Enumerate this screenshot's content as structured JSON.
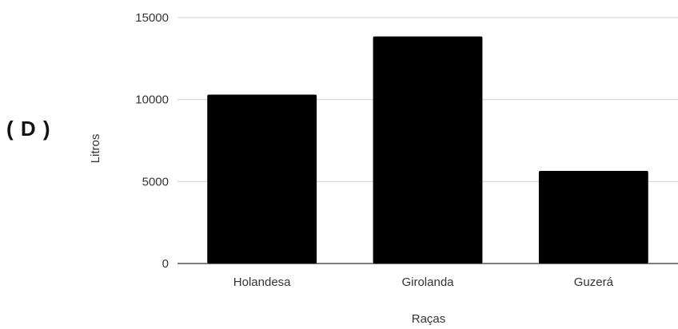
{
  "option_label": "( D )",
  "chart_data": {
    "type": "bar",
    "categories": [
      "Holandesa",
      "Girolanda",
      "Guzerá"
    ],
    "values": [
      10300,
      13850,
      5650
    ],
    "title": "",
    "xlabel": "Raças",
    "ylabel": "Litros",
    "ylim": [
      0,
      15000
    ],
    "yticks": [
      0,
      5000,
      10000,
      15000
    ],
    "grid": true,
    "bar_color": "#000000"
  }
}
